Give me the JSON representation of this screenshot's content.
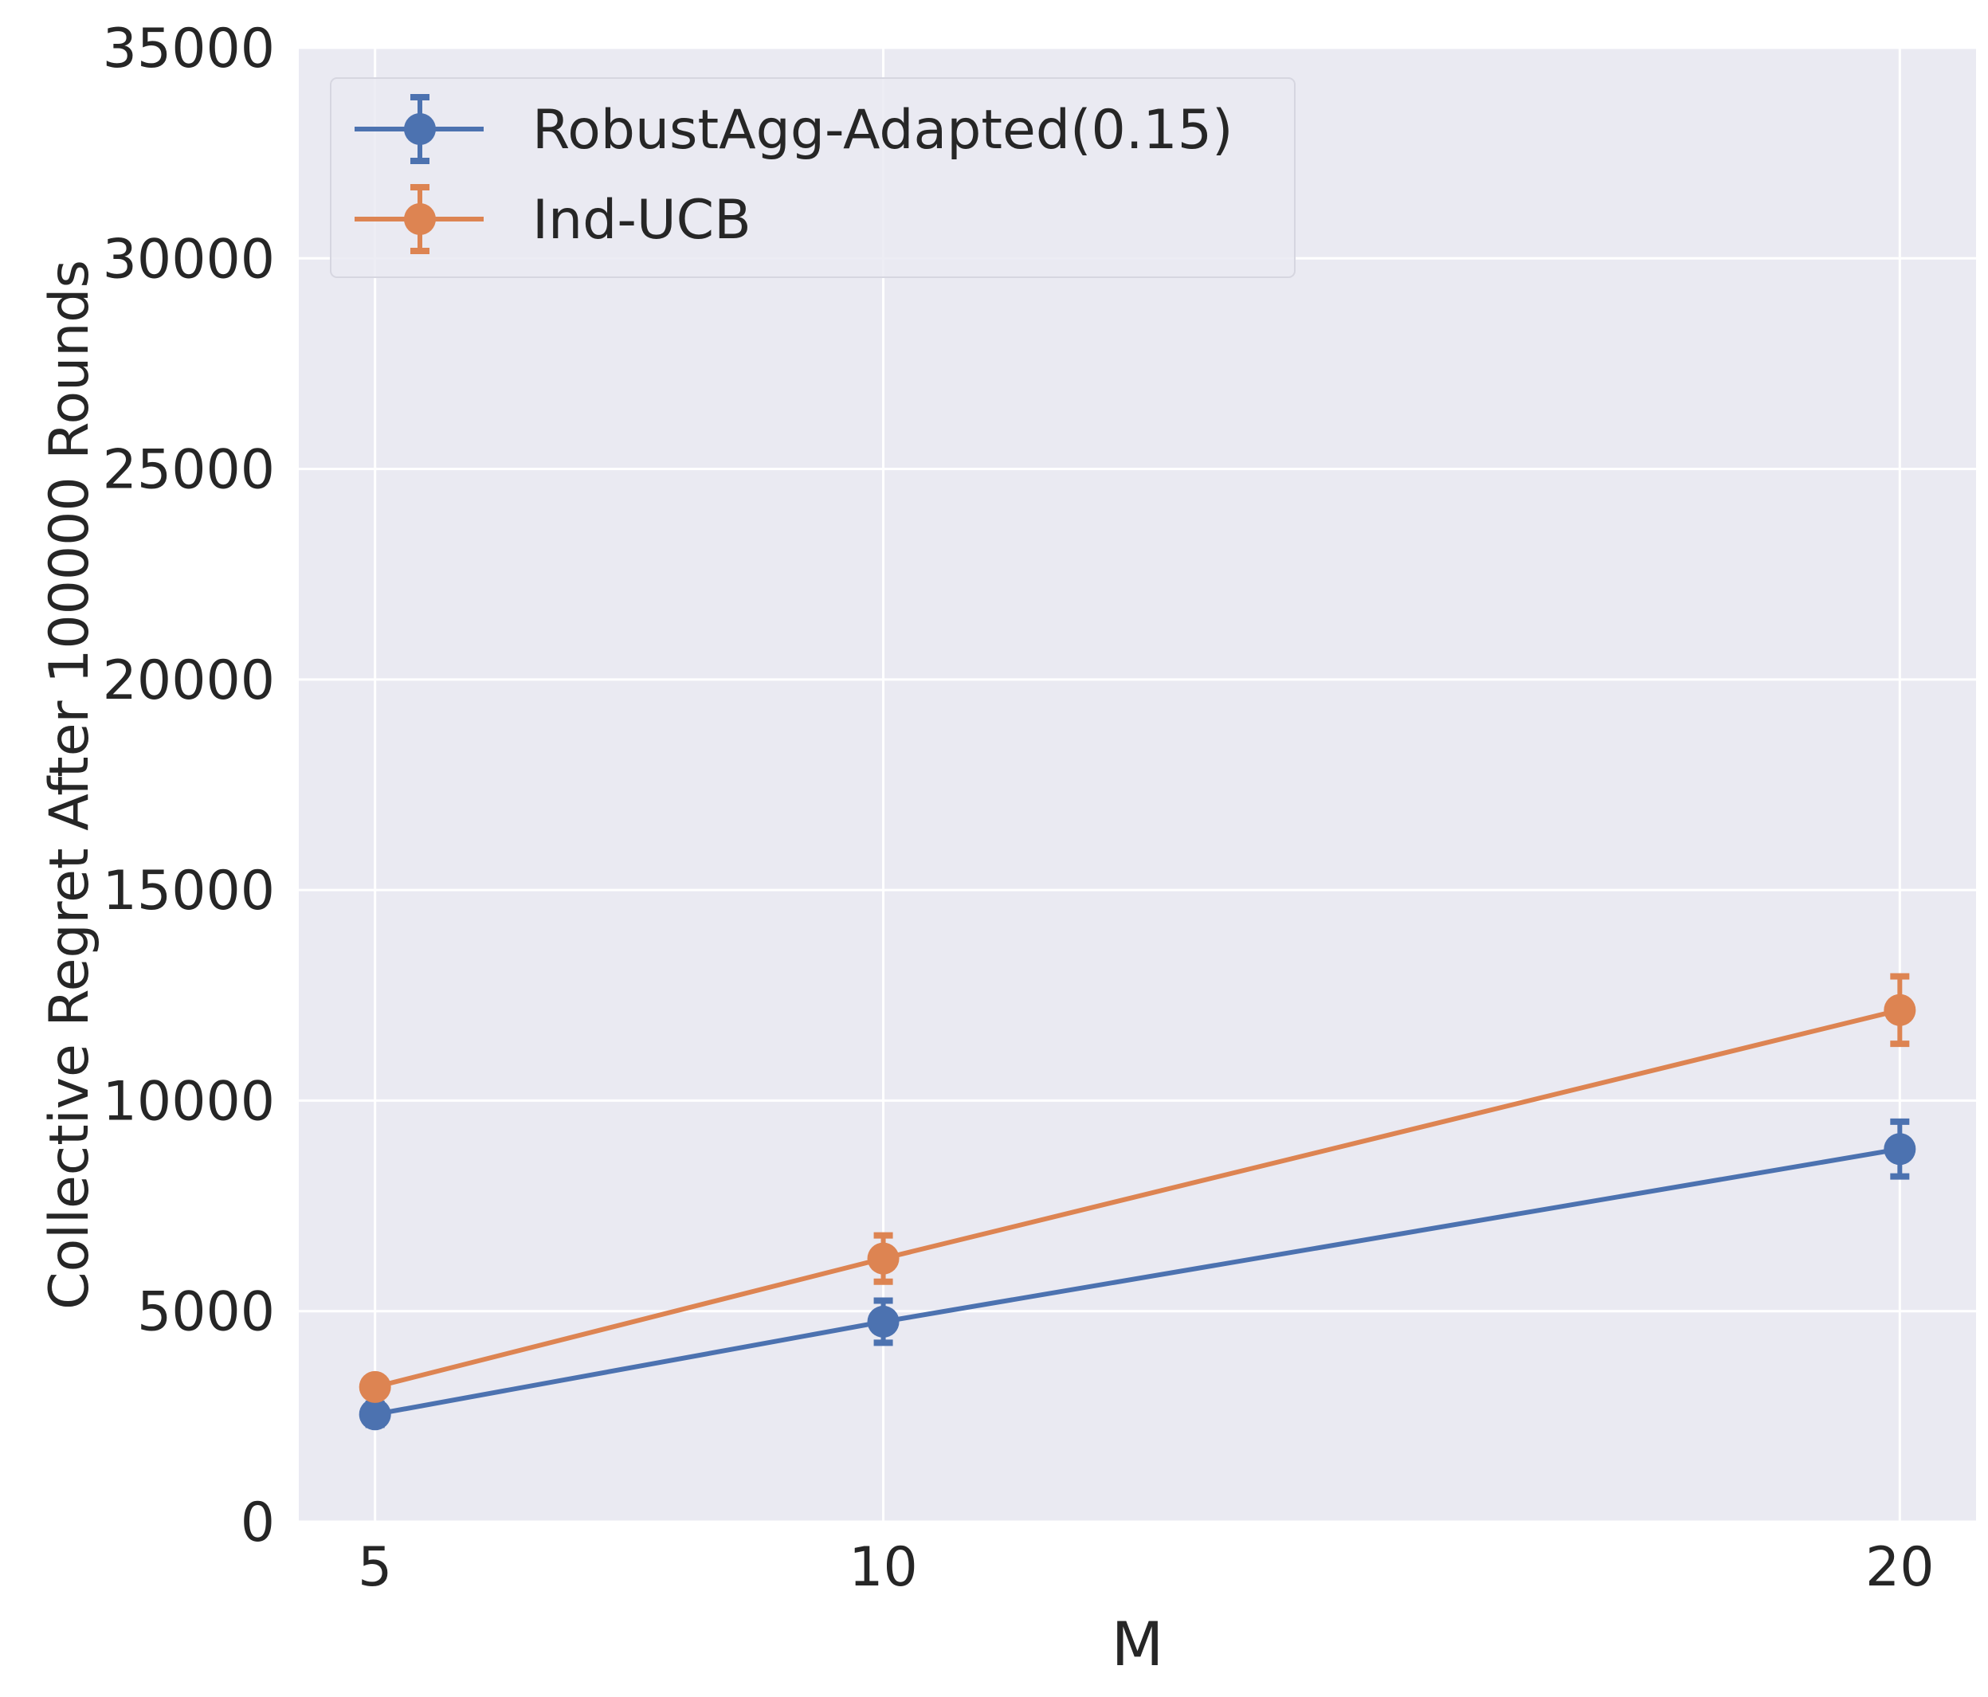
{
  "chart_data": {
    "type": "line",
    "title": "",
    "xlabel": "M",
    "ylabel": "Collective Regret After 100000 Rounds",
    "x": [
      5,
      10,
      20
    ],
    "x_ticks": [
      "5",
      "10",
      "20"
    ],
    "xlim": [
      4.25,
      20.75
    ],
    "ylim": [
      0,
      35000
    ],
    "y_ticks": [
      "0",
      "5000",
      "10000",
      "15000",
      "20000",
      "25000",
      "30000",
      "35000"
    ],
    "grid": true,
    "legend_position": "top-left",
    "series": [
      {
        "name": "RobustAgg-Adapted(0.15)",
        "color": "#4c72b0",
        "values": [
          2550,
          4750,
          8850
        ],
        "errors": [
          250,
          500,
          650
        ]
      },
      {
        "name": "Ind-UCB",
        "color": "#dd8452",
        "values": [
          3200,
          6250,
          12150
        ],
        "errors": [
          200,
          550,
          800
        ]
      }
    ]
  },
  "style": {
    "background": "#eaeaf2",
    "grid_color": "#ffffff",
    "text_color": "#262626"
  }
}
